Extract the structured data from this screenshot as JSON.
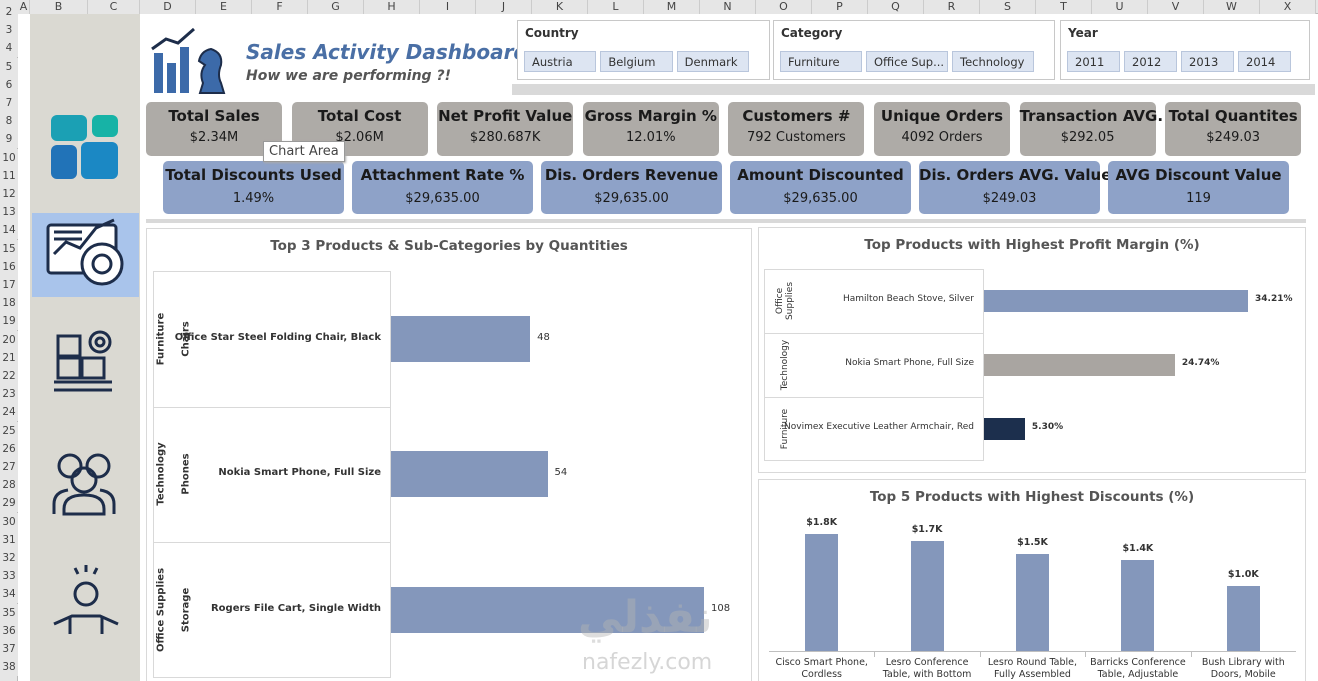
{
  "spreadsheet": {
    "columns": [
      "A",
      "B",
      "C",
      "D",
      "E",
      "F",
      "G",
      "H",
      "I",
      "J",
      "K",
      "L",
      "M",
      "N",
      "O",
      "P",
      "Q",
      "R",
      "S",
      "T",
      "U",
      "V",
      "W",
      "X"
    ],
    "rows": [
      2,
      3,
      4,
      5,
      6,
      7,
      8,
      9,
      10,
      11,
      12,
      13,
      14,
      15,
      16,
      17,
      18,
      19,
      20,
      21,
      22,
      23,
      24,
      25,
      26,
      27,
      28,
      29,
      30,
      31,
      32,
      33,
      34,
      35,
      36,
      37,
      38
    ]
  },
  "header": {
    "title": "Sales Activity Dashboard",
    "subtitle": "How we are performing ?!"
  },
  "slicers": [
    {
      "title": "Country",
      "items": [
        "Austria",
        "Belgium",
        "Denmark"
      ]
    },
    {
      "title": "Category",
      "items": [
        "Furniture",
        "Office Sup...",
        "Technology"
      ]
    },
    {
      "title": "Year",
      "items": [
        2011,
        2012,
        2013,
        2014
      ]
    }
  ],
  "kpis": {
    "row1": [
      {
        "label": "Total Sales",
        "value": "$2.34M"
      },
      {
        "label": "Total Cost",
        "value": "$2.06M"
      },
      {
        "label": "Net Profit Value",
        "value": "$280.687K"
      },
      {
        "label": "Gross Margin %",
        "value": "12.01%"
      },
      {
        "label": "Customers #",
        "value": "792  Customers"
      },
      {
        "label": "Unique Orders",
        "value": "4092 Orders"
      },
      {
        "label": "Transaction AVG.",
        "value": "$292.05"
      },
      {
        "label": "Total Quantites",
        "value": "$249.03"
      }
    ],
    "row2": [
      {
        "label": "Total Discounts Used",
        "value": "1.49%"
      },
      {
        "label": "Attachment Rate %",
        "value": "$29,635.00"
      },
      {
        "label": "Dis. Orders Revenue",
        "value": "$29,635.00"
      },
      {
        "label": "Amount Discounted",
        "value": "$29,635.00"
      },
      {
        "label": "Dis. Orders AVG. Value",
        "value": "$249.03"
      },
      {
        "label": "AVG Discount Value",
        "value": "119"
      }
    ]
  },
  "tooltip": "Chart Area",
  "watermark": {
    "arabic": "نفذلي",
    "latin": "nafezly.com"
  },
  "chart_data": [
    {
      "type": "hbar",
      "title": "Top 3 Products & Sub-Categories  by Quantities",
      "groups": [
        "Furniture",
        "Technology",
        "Office Supplies"
      ],
      "subcategories": [
        "Chairs",
        "Phones",
        "Storage"
      ],
      "categories": [
        "Office Star Steel Folding Chair, Black",
        "Nokia Smart Phone, Full Size",
        "Rogers File Cart, Single Width"
      ],
      "values": [
        48,
        54,
        108
      ],
      "color": "#8497bb"
    },
    {
      "type": "hbar",
      "title": "Top Products with Highest Profit Margin (%)",
      "groups": [
        "Office Supplies",
        "Technology",
        "Furniture"
      ],
      "categories": [
        "Hamilton Beach Stove, Silver",
        "Nokia Smart Phone, Full Size",
        "Novimex Executive Leather Armchair, Red"
      ],
      "values": [
        34.21,
        24.74,
        5.3
      ],
      "value_labels": [
        "34.21%",
        "24.74%",
        "5.30%"
      ],
      "colors": [
        "#8497bb",
        "#a9a5a1",
        "#1c2f4d"
      ]
    },
    {
      "type": "bar",
      "title": "Top 5 Products with Highest Discounts (%)",
      "categories": [
        "Cisco Smart Phone, Cordless",
        "Lesro Conference Table, with Bottom Storage",
        "Lesro Round Table, Fully Assembled",
        "Barricks Conference Table, Adjustable Height",
        "Bush Library with Doors, Mobile"
      ],
      "values": [
        1800,
        1700,
        1500,
        1400,
        1000
      ],
      "value_labels": [
        "$1.8K",
        "$1.7K",
        "$1.5K",
        "$1.4K",
        "$1.0K"
      ],
      "color": "#8497bb"
    }
  ]
}
